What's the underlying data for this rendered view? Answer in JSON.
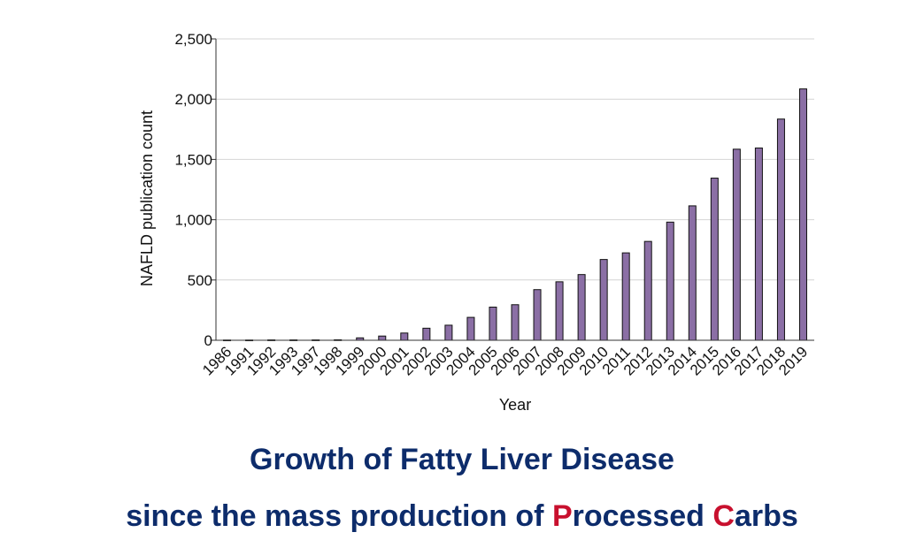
{
  "chart_data": {
    "type": "bar",
    "categories": [
      "1986",
      "1991",
      "1992",
      "1993",
      "1997",
      "1998",
      "1999",
      "2000",
      "2001",
      "2002",
      "2003",
      "2004",
      "2005",
      "2006",
      "2007",
      "2008",
      "2009",
      "2010",
      "2011",
      "2012",
      "2013",
      "2014",
      "2015",
      "2016",
      "2017",
      "2018",
      "2019"
    ],
    "values": [
      2,
      2,
      3,
      3,
      3,
      4,
      20,
      35,
      60,
      100,
      125,
      190,
      275,
      295,
      420,
      485,
      545,
      670,
      725,
      820,
      980,
      1115,
      1345,
      1585,
      1595,
      1835,
      2085
    ],
    "xlabel": "Year",
    "ylabel": "NAFLD publication count",
    "ylim": [
      0,
      2500
    ],
    "yticks": [
      0,
      500,
      1000,
      1500,
      2000,
      2500
    ],
    "ytick_labels": [
      "0",
      "500",
      "1,000",
      "1,500",
      "2,000",
      "2,500"
    ],
    "grid": true,
    "bar_color": "#8b6fa5"
  },
  "caption": {
    "line1": "Growth of Fatty Liver Disease",
    "line2_prefix": "since the mass production of ",
    "line2_p": "P",
    "line2_mid": "rocessed ",
    "line2_c": "C",
    "line2_suffix": "arbs",
    "color": "#0d2c6b",
    "accent_color": "#c8102e"
  }
}
